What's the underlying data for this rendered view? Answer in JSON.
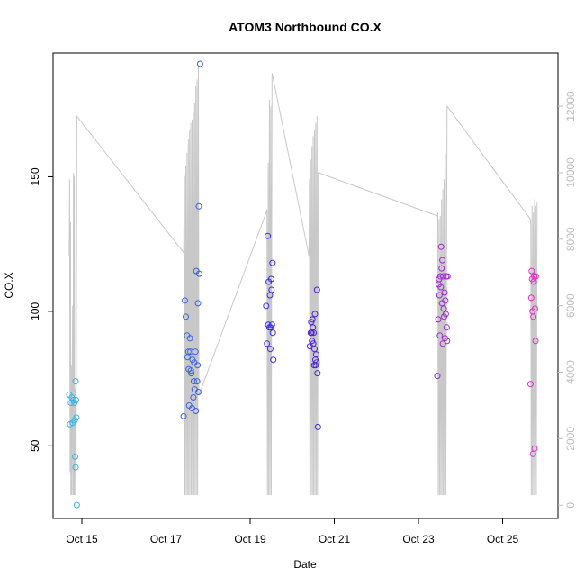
{
  "chart_data": {
    "type": "scatter",
    "title": "ATOM3 Northbound CO.X",
    "xlabel": "Date",
    "ylabel": "CO.X",
    "x_ticks": [
      "Oct 15",
      "Oct 17",
      "Oct 19",
      "Oct 21",
      "Oct 23",
      "Oct 25"
    ],
    "y_ticks": [
      "50",
      "100",
      "150"
    ],
    "y2_ticks": [
      "0",
      "2000",
      "4000",
      "6000",
      "8000",
      "10000",
      "12000"
    ],
    "xlim_days": [
      14.5,
      26.2
    ],
    "ylim": [
      23,
      196
    ],
    "y2lim": [
      -400,
      13600
    ],
    "point_colors": {
      "early": "#3cb6ea",
      "mid": "#3b1fd6",
      "late": "#e02fc8"
    },
    "line_color": "#c8c8c8",
    "points": [
      {
        "t": 14.7,
        "v": 69
      },
      {
        "t": 14.72,
        "v": 58
      },
      {
        "t": 14.74,
        "v": 66
      },
      {
        "t": 14.76,
        "v": 68
      },
      {
        "t": 14.78,
        "v": 58.5
      },
      {
        "t": 14.8,
        "v": 67
      },
      {
        "t": 14.82,
        "v": 66
      },
      {
        "t": 14.83,
        "v": 59.5
      },
      {
        "t": 14.85,
        "v": 74
      },
      {
        "t": 14.86,
        "v": 67
      },
      {
        "t": 14.87,
        "v": 60.5
      },
      {
        "t": 14.84,
        "v": 46
      },
      {
        "t": 14.85,
        "v": 42
      },
      {
        "t": 14.88,
        "v": 28
      },
      {
        "t": 17.42,
        "v": 61
      },
      {
        "t": 17.45,
        "v": 104
      },
      {
        "t": 17.47,
        "v": 98
      },
      {
        "t": 17.5,
        "v": 91
      },
      {
        "t": 17.51,
        "v": 83
      },
      {
        "t": 17.53,
        "v": 85
      },
      {
        "t": 17.54,
        "v": 78.5
      },
      {
        "t": 17.55,
        "v": 65
      },
      {
        "t": 17.57,
        "v": 90
      },
      {
        "t": 17.58,
        "v": 85
      },
      {
        "t": 17.59,
        "v": 78
      },
      {
        "t": 17.6,
        "v": 77
      },
      {
        "t": 17.62,
        "v": 64
      },
      {
        "t": 17.63,
        "v": 82
      },
      {
        "t": 17.65,
        "v": 68
      },
      {
        "t": 17.66,
        "v": 74
      },
      {
        "t": 17.67,
        "v": 81
      },
      {
        "t": 17.68,
        "v": 71
      },
      {
        "t": 17.7,
        "v": 85
      },
      {
        "t": 17.71,
        "v": 63
      },
      {
        "t": 17.72,
        "v": 115
      },
      {
        "t": 17.74,
        "v": 74
      },
      {
        "t": 17.75,
        "v": 80
      },
      {
        "t": 17.76,
        "v": 103
      },
      {
        "t": 17.77,
        "v": 70
      },
      {
        "t": 17.78,
        "v": 139
      },
      {
        "t": 17.79,
        "v": 114
      },
      {
        "t": 17.81,
        "v": 192
      },
      {
        "t": 19.38,
        "v": 102
      },
      {
        "t": 19.4,
        "v": 88
      },
      {
        "t": 19.42,
        "v": 128
      },
      {
        "t": 19.43,
        "v": 95
      },
      {
        "t": 19.44,
        "v": 111
      },
      {
        "t": 19.46,
        "v": 94
      },
      {
        "t": 19.47,
        "v": 106
      },
      {
        "t": 19.48,
        "v": 86
      },
      {
        "t": 19.49,
        "v": 94
      },
      {
        "t": 19.5,
        "v": 112
      },
      {
        "t": 19.51,
        "v": 108
      },
      {
        "t": 19.52,
        "v": 95
      },
      {
        "t": 19.53,
        "v": 118
      },
      {
        "t": 19.54,
        "v": 92
      },
      {
        "t": 19.55,
        "v": 82
      },
      {
        "t": 20.42,
        "v": 87
      },
      {
        "t": 20.44,
        "v": 92
      },
      {
        "t": 20.45,
        "v": 96
      },
      {
        "t": 20.46,
        "v": 92
      },
      {
        "t": 20.47,
        "v": 89
      },
      {
        "t": 20.48,
        "v": 97
      },
      {
        "t": 20.49,
        "v": 94
      },
      {
        "t": 20.5,
        "v": 88
      },
      {
        "t": 20.51,
        "v": 92
      },
      {
        "t": 20.52,
        "v": 80
      },
      {
        "t": 20.53,
        "v": 86
      },
      {
        "t": 20.54,
        "v": 99
      },
      {
        "t": 20.55,
        "v": 82
      },
      {
        "t": 20.56,
        "v": 80
      },
      {
        "t": 20.57,
        "v": 84
      },
      {
        "t": 20.58,
        "v": 81
      },
      {
        "t": 20.59,
        "v": 108
      },
      {
        "t": 20.6,
        "v": 77
      },
      {
        "t": 20.61,
        "v": 57
      },
      {
        "t": 23.45,
        "v": 76
      },
      {
        "t": 23.47,
        "v": 97
      },
      {
        "t": 23.48,
        "v": 110
      },
      {
        "t": 23.49,
        "v": 112
      },
      {
        "t": 23.5,
        "v": 106
      },
      {
        "t": 23.51,
        "v": 91
      },
      {
        "t": 23.52,
        "v": 113
      },
      {
        "t": 23.53,
        "v": 109
      },
      {
        "t": 23.54,
        "v": 124
      },
      {
        "t": 23.55,
        "v": 116
      },
      {
        "t": 23.56,
        "v": 103
      },
      {
        "t": 23.57,
        "v": 119
      },
      {
        "t": 23.58,
        "v": 88
      },
      {
        "t": 23.59,
        "v": 113
      },
      {
        "t": 23.6,
        "v": 101
      },
      {
        "t": 23.61,
        "v": 98
      },
      {
        "t": 23.62,
        "v": 107
      },
      {
        "t": 23.63,
        "v": 90
      },
      {
        "t": 23.64,
        "v": 104
      },
      {
        "t": 23.65,
        "v": 99
      },
      {
        "t": 23.66,
        "v": 113
      },
      {
        "t": 23.67,
        "v": 94
      },
      {
        "t": 23.68,
        "v": 89
      },
      {
        "t": 23.69,
        "v": 113
      },
      {
        "t": 25.66,
        "v": 73
      },
      {
        "t": 25.68,
        "v": 105
      },
      {
        "t": 25.69,
        "v": 115
      },
      {
        "t": 25.7,
        "v": 112
      },
      {
        "t": 25.71,
        "v": 100
      },
      {
        "t": 25.72,
        "v": 47
      },
      {
        "t": 25.73,
        "v": 98
      },
      {
        "t": 25.74,
        "v": 111
      },
      {
        "t": 25.75,
        "v": 113
      },
      {
        "t": 25.76,
        "v": 49
      },
      {
        "t": 25.77,
        "v": 101
      },
      {
        "t": 25.78,
        "v": 89
      },
      {
        "t": 25.79,
        "v": 113
      }
    ],
    "line_series": [
      [
        14.7,
        7500
      ],
      [
        14.71,
        9800
      ],
      [
        14.72,
        1000
      ],
      [
        14.73,
        8500
      ],
      [
        14.74,
        300
      ],
      [
        14.75,
        4200
      ],
      [
        14.76,
        300
      ],
      [
        14.78,
        6000
      ],
      [
        14.79,
        300
      ],
      [
        14.8,
        10000
      ],
      [
        14.81,
        300
      ],
      [
        14.82,
        9900
      ],
      [
        14.83,
        300
      ],
      [
        14.85,
        3500
      ],
      [
        14.86,
        300
      ],
      [
        14.88,
        11700
      ],
      [
        17.42,
        7600
      ],
      [
        17.44,
        9900
      ],
      [
        17.45,
        300
      ],
      [
        17.47,
        10200
      ],
      [
        17.48,
        300
      ],
      [
        17.5,
        10600
      ],
      [
        17.51,
        300
      ],
      [
        17.53,
        11000
      ],
      [
        17.54,
        300
      ],
      [
        17.56,
        11300
      ],
      [
        17.57,
        300
      ],
      [
        17.59,
        11500
      ],
      [
        17.6,
        300
      ],
      [
        17.62,
        11600
      ],
      [
        17.63,
        300
      ],
      [
        17.65,
        11800
      ],
      [
        17.66,
        300
      ],
      [
        17.68,
        12100
      ],
      [
        17.69,
        300
      ],
      [
        17.71,
        12600
      ],
      [
        17.72,
        300
      ],
      [
        17.74,
        12800
      ],
      [
        17.75,
        300
      ],
      [
        17.77,
        13200
      ],
      [
        17.78,
        3300
      ],
      [
        19.38,
        8800
      ],
      [
        19.4,
        8900
      ],
      [
        19.41,
        300
      ],
      [
        19.43,
        10300
      ],
      [
        19.44,
        300
      ],
      [
        19.46,
        12200
      ],
      [
        19.47,
        300
      ],
      [
        19.49,
        12000
      ],
      [
        19.5,
        300
      ],
      [
        19.52,
        13000
      ],
      [
        20.4,
        7500
      ],
      [
        20.41,
        9800
      ],
      [
        20.42,
        300
      ],
      [
        20.44,
        10400
      ],
      [
        20.45,
        300
      ],
      [
        20.47,
        10800
      ],
      [
        20.48,
        300
      ],
      [
        20.5,
        11100
      ],
      [
        20.51,
        300
      ],
      [
        20.53,
        11300
      ],
      [
        20.54,
        300
      ],
      [
        20.56,
        11500
      ],
      [
        20.57,
        300
      ],
      [
        20.59,
        11700
      ],
      [
        20.6,
        300
      ],
      [
        20.62,
        10000
      ],
      [
        23.45,
        8700
      ],
      [
        23.46,
        8800
      ],
      [
        23.47,
        300
      ],
      [
        23.49,
        8600
      ],
      [
        23.5,
        300
      ],
      [
        23.52,
        8700
      ],
      [
        23.53,
        300
      ],
      [
        23.55,
        9200
      ],
      [
        23.56,
        300
      ],
      [
        23.58,
        9500
      ],
      [
        23.59,
        300
      ],
      [
        23.61,
        9800
      ],
      [
        23.62,
        300
      ],
      [
        23.64,
        10600
      ],
      [
        23.65,
        300
      ],
      [
        23.68,
        12000
      ],
      [
        25.66,
        8600
      ],
      [
        25.67,
        8400
      ],
      [
        25.68,
        300
      ],
      [
        25.7,
        9000
      ],
      [
        25.71,
        300
      ],
      [
        25.73,
        8800
      ],
      [
        25.74,
        300
      ],
      [
        25.76,
        9200
      ],
      [
        25.77,
        300
      ],
      [
        25.79,
        9000
      ],
      [
        25.8,
        300
      ],
      [
        25.82,
        9100
      ]
    ]
  }
}
